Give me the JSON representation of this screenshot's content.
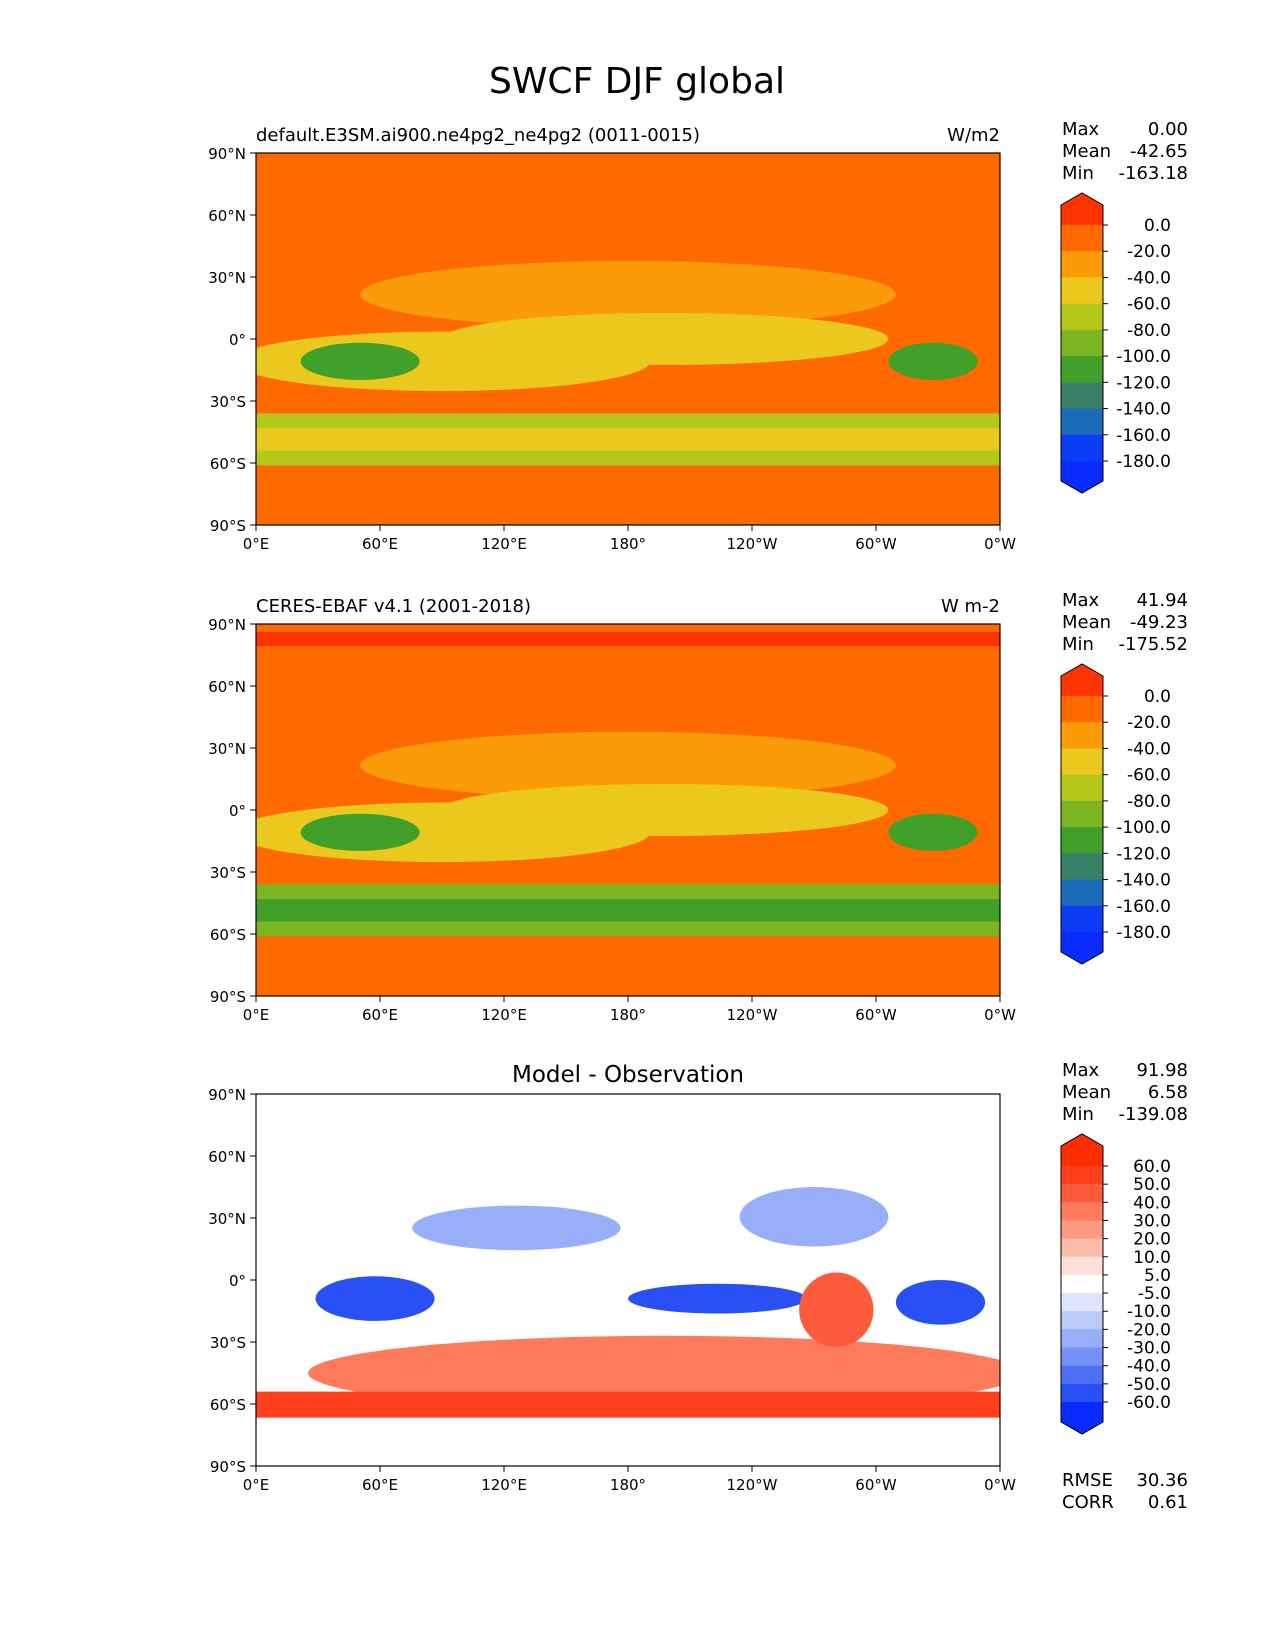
{
  "title": "SWCF DJF global",
  "lat_ticks": [
    "90°N",
    "60°N",
    "30°N",
    "0°",
    "30°S",
    "60°S",
    "90°S"
  ],
  "lon_ticks": [
    "0°E",
    "60°E",
    "120°E",
    "180°",
    "120°W",
    "60°W",
    "0°W"
  ],
  "panels": [
    {
      "left_title": "default.E3SM.ai900.ne4pg2_ne4pg2 (0011-0015)",
      "center_title": "",
      "units": "W/m2",
      "stats": [
        {
          "label": "Max",
          "value": "0.00"
        },
        {
          "label": "Mean",
          "value": "-42.65"
        },
        {
          "label": "Min",
          "value": "-163.18"
        }
      ],
      "colorbar": {
        "labels": [
          "0.0",
          "-20.0",
          "-40.0",
          "-60.0",
          "-80.0",
          "-100.0",
          "-120.0",
          "-140.0",
          "-160.0",
          "-180.0"
        ],
        "colors": [
          "#ff3300",
          "#ff6a00",
          "#fb9b07",
          "#ebc81e",
          "#b3c71b",
          "#7cb521",
          "#41a02a",
          "#3a8068",
          "#1b6bb8",
          "#0a3df5",
          "#0a2bff"
        ]
      },
      "extra": []
    },
    {
      "left_title": "CERES-EBAF v4.1 (2001-2018)",
      "center_title": "",
      "units": "W m-2",
      "stats": [
        {
          "label": "Max",
          "value": "41.94"
        },
        {
          "label": "Mean",
          "value": "-49.23"
        },
        {
          "label": "Min",
          "value": "-175.52"
        }
      ],
      "colorbar": {
        "labels": [
          "0.0",
          "-20.0",
          "-40.0",
          "-60.0",
          "-80.0",
          "-100.0",
          "-120.0",
          "-140.0",
          "-160.0",
          "-180.0"
        ],
        "colors": [
          "#ff3300",
          "#ff6a00",
          "#fb9b07",
          "#ebc81e",
          "#b3c71b",
          "#7cb521",
          "#41a02a",
          "#3a8068",
          "#1b6bb8",
          "#0a3df5",
          "#0a2bff"
        ]
      },
      "extra": []
    },
    {
      "left_title": "",
      "center_title": "Model - Observation",
      "units": "",
      "stats": [
        {
          "label": "Max",
          "value": "91.98"
        },
        {
          "label": "Mean",
          "value": "6.58"
        },
        {
          "label": "Min",
          "value": "-139.08"
        }
      ],
      "colorbar": {
        "labels": [
          "60.0",
          "50.0",
          "40.0",
          "30.0",
          "20.0",
          "10.0",
          "5.0",
          "-5.0",
          "-10.0",
          "-20.0",
          "-30.0",
          "-40.0",
          "-50.0",
          "-60.0"
        ],
        "colors": [
          "#ff2d00",
          "#ff3f1e",
          "#fe5a3c",
          "#fd7a5c",
          "#fc9a82",
          "#fcbcab",
          "#fde0d8",
          "#ffffff",
          "#dde5fc",
          "#bccafa",
          "#99aef8",
          "#7391f6",
          "#4f70f5",
          "#2950f5",
          "#0a2bff"
        ]
      },
      "extra": [
        {
          "label": "RMSE",
          "value": "30.36"
        },
        {
          "label": "CORR",
          "value": "0.61"
        }
      ]
    }
  ],
  "chart_data": [
    {
      "type": "heatmap",
      "title": "default.E3SM.ai900.ne4pg2_ne4pg2 (0011-0015)",
      "units": "W/m2",
      "x_ticks": [
        "0°E",
        "60°E",
        "120°E",
        "180°",
        "120°W",
        "60°W",
        "0°W"
      ],
      "y_ticks": [
        "90°N",
        "60°N",
        "30°N",
        "0°",
        "30°S",
        "60°S",
        "90°S"
      ],
      "xlim": [
        0,
        360
      ],
      "ylim": [
        -90,
        90
      ],
      "max": 0.0,
      "mean": -42.65,
      "min": -163.18,
      "colorbar_levels": [
        0,
        -20,
        -40,
        -60,
        -80,
        -100,
        -120,
        -140,
        -160,
        -180
      ]
    },
    {
      "type": "heatmap",
      "title": "CERES-EBAF v4.1 (2001-2018)",
      "units": "W m-2",
      "x_ticks": [
        "0°E",
        "60°E",
        "120°E",
        "180°",
        "120°W",
        "60°W",
        "0°W"
      ],
      "y_ticks": [
        "90°N",
        "60°N",
        "30°N",
        "0°",
        "30°S",
        "60°S",
        "90°S"
      ],
      "xlim": [
        0,
        360
      ],
      "ylim": [
        -90,
        90
      ],
      "max": 41.94,
      "mean": -49.23,
      "min": -175.52,
      "colorbar_levels": [
        0,
        -20,
        -40,
        -60,
        -80,
        -100,
        -120,
        -140,
        -160,
        -180
      ]
    },
    {
      "type": "heatmap",
      "title": "Model - Observation",
      "x_ticks": [
        "0°E",
        "60°E",
        "120°E",
        "180°",
        "120°W",
        "60°W",
        "0°W"
      ],
      "y_ticks": [
        "90°N",
        "60°N",
        "30°N",
        "0°",
        "30°S",
        "60°S",
        "90°S"
      ],
      "xlim": [
        0,
        360
      ],
      "ylim": [
        -90,
        90
      ],
      "max": 91.98,
      "mean": 6.58,
      "min": -139.08,
      "rmse": 30.36,
      "corr": 0.61,
      "colorbar_levels": [
        60,
        50,
        40,
        30,
        20,
        10,
        5,
        -5,
        -10,
        -20,
        -30,
        -40,
        -50,
        -60
      ]
    }
  ]
}
